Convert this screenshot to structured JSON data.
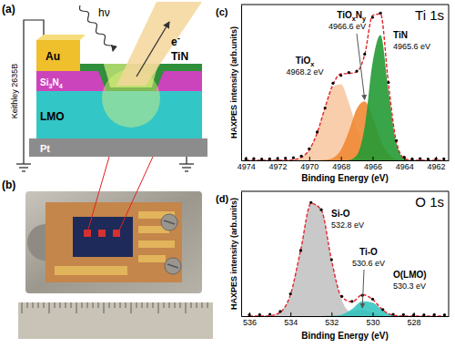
{
  "diagram": {
    "panel": "(a)",
    "instrument": "Keithley 2635B",
    "layers": [
      "Au",
      "TiN",
      "Si3N4",
      "LMO",
      "Pt"
    ],
    "photon": "hν",
    "electron": "e-"
  },
  "photo": {
    "panel": "(b)"
  },
  "chart_data": [
    {
      "type": "line",
      "panel": "(c)",
      "title": "Ti 1s",
      "x_label": "Binding Energy (eV)",
      "y_label": "HAXPES intensity (arb.units)",
      "x": [
        4974,
        4973.5,
        4973,
        4972.5,
        4972,
        4971.5,
        4971,
        4970.5,
        4970,
        4969.5,
        4969,
        4968.5,
        4968,
        4967.5,
        4967,
        4966.5,
        4966,
        4965.5,
        4965,
        4964.5,
        4964,
        4963.5,
        4963,
        4962.5,
        4962,
        4961.5
      ],
      "xlim": [
        4974.3,
        4961.2
      ],
      "xticks": [
        4974,
        4972,
        4970,
        4968,
        4966,
        4964,
        4962
      ],
      "ylim": [
        0,
        1.1
      ],
      "tick_labels": "x",
      "series": [
        {
          "name": "TiOx",
          "annotation": "4968.2 eV",
          "type": "area",
          "color": "#f8c9a4",
          "values": [
            0,
            0,
            0,
            0,
            0,
            0.001,
            0.004,
            0.021,
            0.074,
            0.194,
            0.371,
            0.52,
            0.537,
            0.407,
            0.226,
            0.093,
            0.028,
            0.006,
            0.001,
            0,
            0,
            0,
            0,
            0,
            0,
            0
          ]
        },
        {
          "name": "TiOxNy",
          "annotation": "4966.6 eV",
          "type": "area",
          "color": "#ef8a35",
          "values": [
            0,
            0,
            0,
            0,
            0,
            0,
            0,
            0,
            0,
            0,
            0.003,
            0.017,
            0.074,
            0.204,
            0.364,
            0.416,
            0.305,
            0.143,
            0.043,
            0.008,
            0.001,
            0,
            0,
            0,
            0,
            0
          ]
        },
        {
          "name": "TiN",
          "annotation": "4965.6 eV",
          "type": "area",
          "color": "#239a34",
          "values": [
            0,
            0,
            0,
            0,
            0,
            0,
            0,
            0,
            0,
            0,
            0,
            0,
            0,
            0.002,
            0.035,
            0.236,
            0.691,
            0.885,
            0.496,
            0.122,
            0.013,
            0.001,
            0,
            0,
            0,
            0
          ]
        },
        {
          "type": "line",
          "color": "#e3232b",
          "line_style": "dashed",
          "values": [
            0,
            0,
            0,
            0,
            0,
            0.001,
            0.004,
            0.021,
            0.074,
            0.194,
            0.374,
            0.537,
            0.611,
            0.613,
            0.625,
            0.745,
            1.024,
            1.034,
            0.54,
            0.13,
            0.014,
            0.001,
            0,
            0,
            0,
            0
          ]
        },
        {
          "type": "scatter",
          "color": "#000000",
          "marker": "circle",
          "values": [
            0.01,
            0.012,
            0.009,
            0.011,
            0.013,
            0.015,
            0.018,
            0.03,
            0.082,
            0.2,
            0.37,
            0.545,
            0.6,
            0.62,
            0.63,
            0.75,
            1.01,
            1.04,
            0.55,
            0.14,
            0.022,
            0.01,
            0.012,
            0.009,
            0.011,
            0.01
          ]
        }
      ]
    },
    {
      "type": "line",
      "panel": "(d)",
      "title": "O 1s",
      "x_label": "Binding Energy (eV)",
      "y_label": "HAXPES intensity (arb.units)",
      "x": [
        536,
        535.5,
        535,
        534.5,
        534,
        533.5,
        533,
        532.5,
        532,
        531.5,
        531,
        530.5,
        530,
        529.5,
        529,
        528.5,
        528,
        527.5,
        527,
        526.5
      ],
      "xlim": [
        536.4,
        526.3
      ],
      "xticks": [
        536,
        534,
        532,
        530,
        528
      ],
      "ylim": [
        0,
        0.95
      ],
      "tick_labels": "x",
      "series": [
        {
          "name": "Si-O",
          "annotation": "532.8 eV",
          "type": "area",
          "color": "#c3c3c3",
          "values": [
            0,
            0,
            0.003,
            0.029,
            0.164,
            0.504,
            0.858,
            0.809,
            0.422,
            0.122,
            0.02,
            0.002,
            0,
            0,
            0,
            0,
            0,
            0,
            0,
            0
          ]
        },
        {
          "name": "Ti-O",
          "annotation": "530.6 eV",
          "type": "area",
          "color": "#8e9696",
          "values": [
            0,
            0,
            0,
            0,
            0,
            0,
            0,
            0,
            0.001,
            0.01,
            0.036,
            0.049,
            0.024,
            0.004,
            0,
            0,
            0,
            0,
            0,
            0
          ]
        },
        {
          "name": "O(LMO)",
          "annotation": "530.3 eV",
          "type": "area",
          "color": "#37c6c0",
          "values": [
            0,
            0,
            0,
            0,
            0,
            0,
            0,
            0,
            0.001,
            0.011,
            0.053,
            0.112,
            0.103,
            0.042,
            0.007,
            0.001,
            0,
            0,
            0,
            0
          ]
        },
        {
          "type": "line",
          "color": "#e3232b",
          "line_style": "dashed",
          "values": [
            0,
            0,
            0.003,
            0.029,
            0.164,
            0.504,
            0.858,
            0.809,
            0.424,
            0.143,
            0.109,
            0.163,
            0.127,
            0.046,
            0.007,
            0.001,
            0,
            0,
            0,
            0
          ]
        },
        {
          "type": "scatter",
          "color": "#000000",
          "marker": "circle",
          "values": [
            0.01,
            0.011,
            0.014,
            0.035,
            0.17,
            0.5,
            0.865,
            0.81,
            0.43,
            0.15,
            0.112,
            0.158,
            0.13,
            0.05,
            0.014,
            0.011,
            0.01,
            0.009,
            0.011,
            0.01
          ]
        }
      ]
    }
  ]
}
